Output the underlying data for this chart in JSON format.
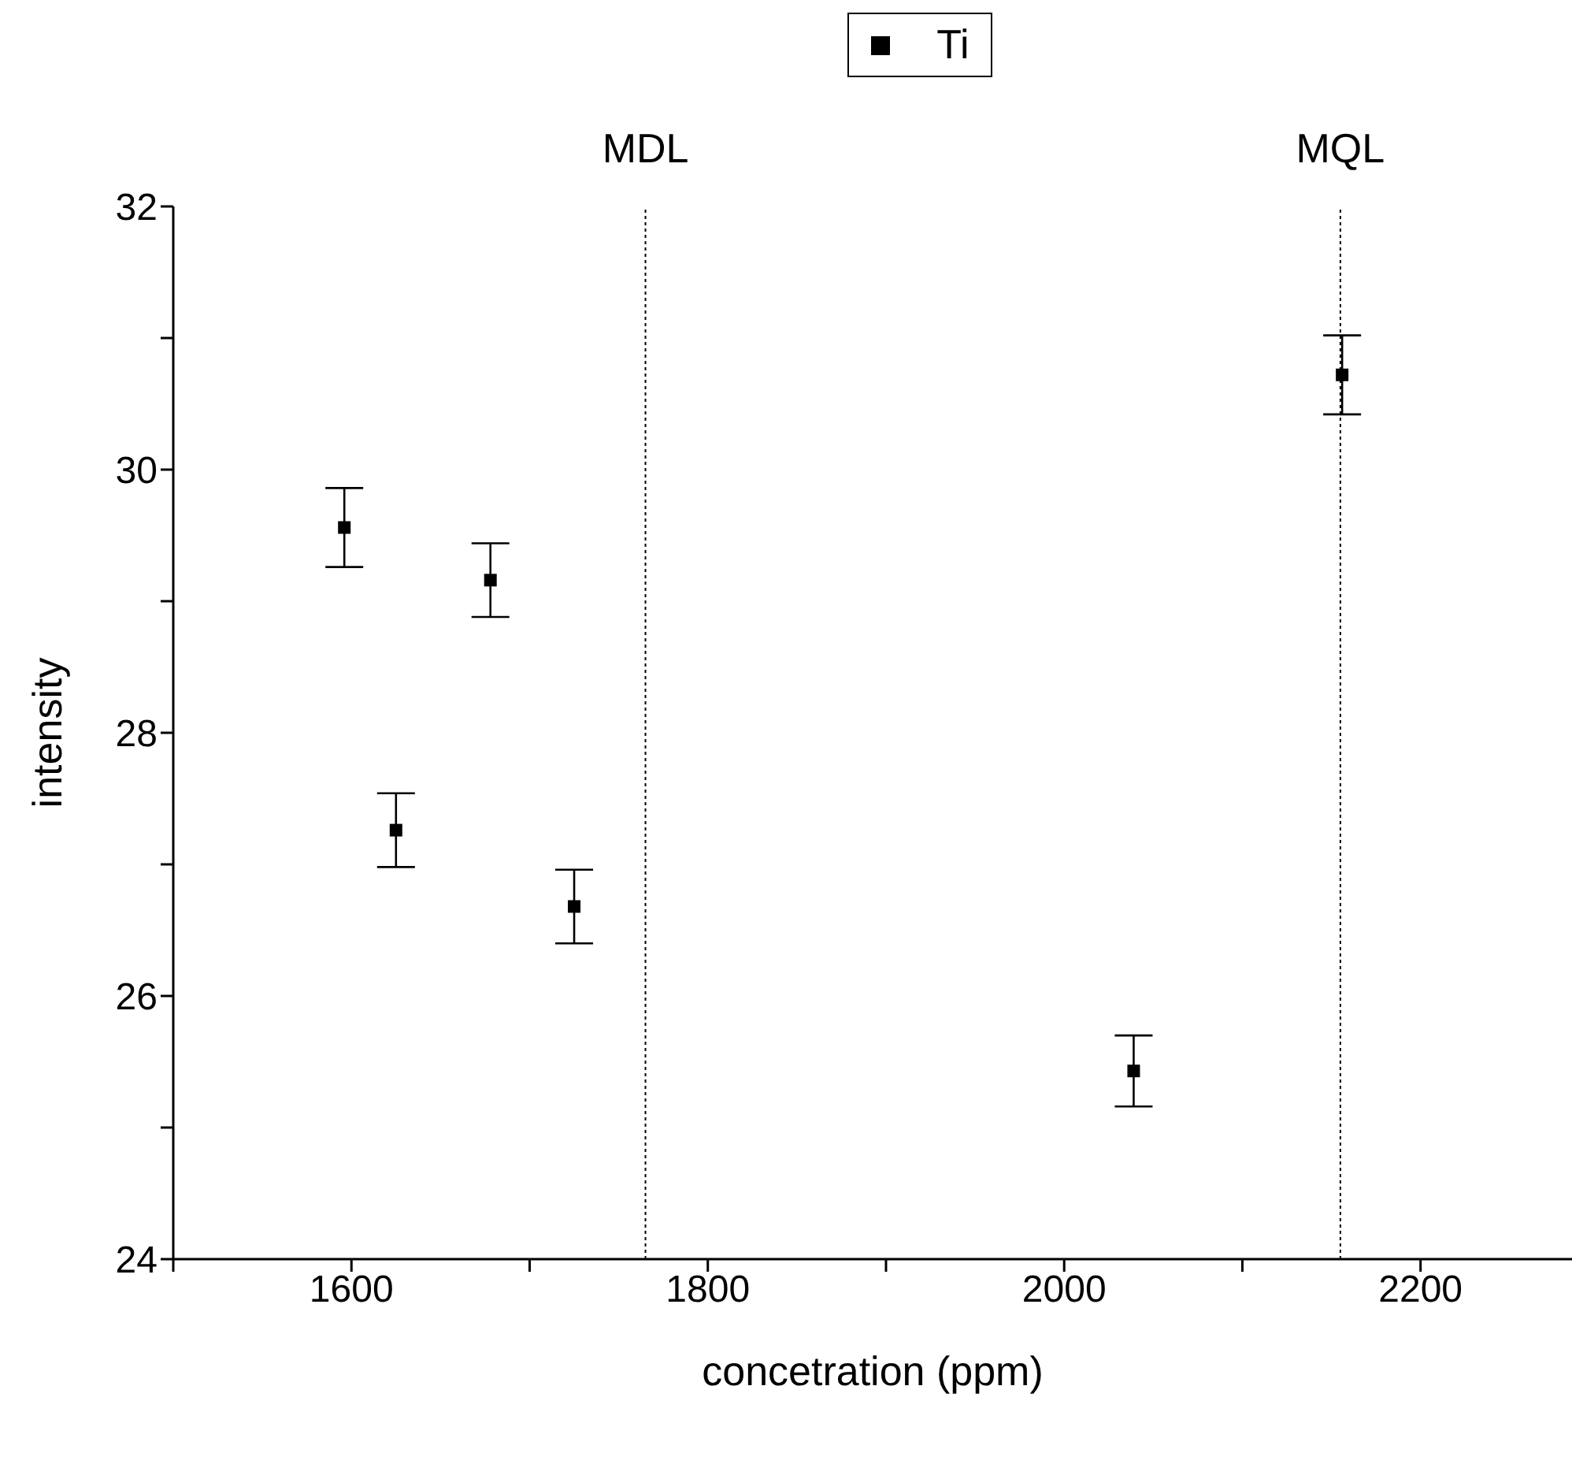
{
  "chart_data": {
    "type": "scatter",
    "xlabel": "concetration (ppm)",
    "ylabel": "intensity",
    "x": [
      1596,
      1625,
      1678,
      1725,
      2039,
      2156
    ],
    "series": [
      {
        "name": "Ti",
        "color": "#000000",
        "values": [
          29.56,
          27.26,
          29.16,
          26.68,
          25.43,
          30.72
        ],
        "errors": [
          0.3,
          0.28,
          0.28,
          0.28,
          0.27,
          0.3
        ]
      }
    ],
    "xlim": [
      1500,
      2285
    ],
    "xticks": [
      {
        "value": 1500,
        "label": null
      },
      1600,
      {
        "value": 1700,
        "label": null
      },
      1800,
      {
        "value": 1900,
        "label": null
      },
      2000,
      {
        "value": 2100,
        "label": null
      },
      2200
    ],
    "ylim": [
      24,
      32
    ],
    "yticks": [
      24,
      {
        "value": 25,
        "label": null
      },
      26,
      {
        "value": 27,
        "label": null
      },
      28,
      {
        "value": 29,
        "label": null
      },
      30,
      {
        "value": 31,
        "label": null
      },
      32
    ],
    "ref_lines": [
      {
        "axis": "x",
        "value": 1765,
        "label": "MDL",
        "line_style": "dotted"
      },
      {
        "axis": "x",
        "value": 2155,
        "label": "MQL",
        "line_style": "dotted"
      }
    ],
    "marker": "square",
    "legend": "top",
    "grid": false
  }
}
